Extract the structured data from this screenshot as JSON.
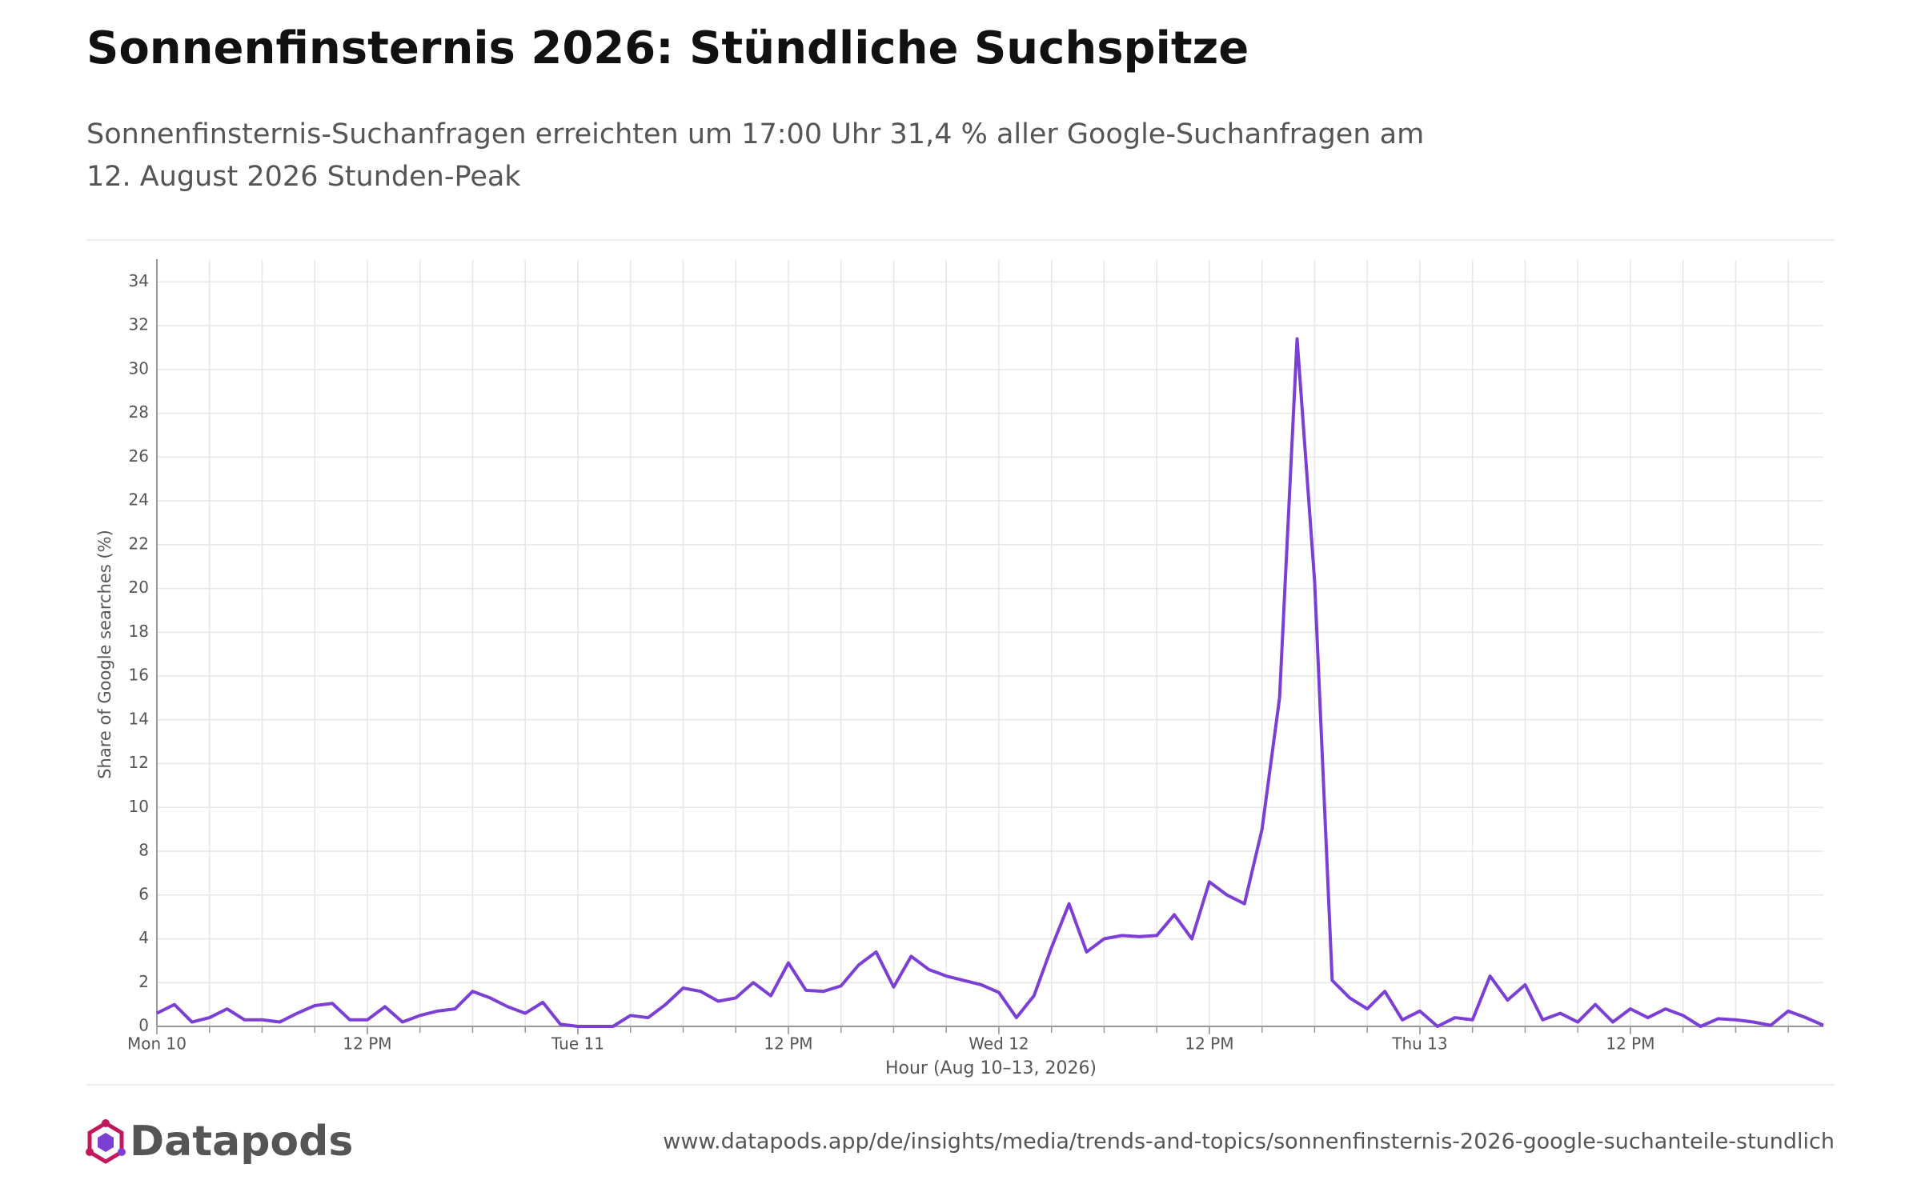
{
  "chart_data": {
    "type": "line",
    "title": "Sonnenfinsternis 2026: Stündliche Suchspitze",
    "subtitle": "Sonnenfinsternis-Suchanfragen erreichten um 17:00 Uhr 31,4 % aller Google-Suchanfragen am 12. August 2026 Stunden-Peak",
    "xlabel": "Hour (Aug 10–13, 2026)",
    "ylabel": "Share of Google searches (%)",
    "color": "#7b3fd6",
    "values": [
      0.6,
      1.0,
      0.2,
      0.4,
      0.8,
      0.3,
      0.3,
      0.2,
      0.6,
      0.95,
      1.05,
      0.3,
      0.3,
      0.9,
      0.2,
      0.5,
      0.7,
      0.8,
      1.6,
      1.3,
      0.9,
      0.6,
      1.1,
      0.1,
      0.0,
      0.0,
      0.0,
      0.5,
      0.4,
      1.0,
      1.75,
      1.6,
      1.15,
      1.3,
      2.0,
      1.4,
      2.9,
      1.65,
      1.6,
      1.85,
      2.8,
      3.4,
      1.8,
      3.2,
      2.6,
      2.3,
      2.1,
      1.9,
      1.55,
      0.4,
      1.4,
      3.6,
      5.6,
      3.4,
      4.0,
      4.15,
      4.1,
      4.15,
      5.1,
      4.0,
      6.6,
      6.0,
      5.6,
      9.0,
      15.0,
      31.4,
      20.3,
      2.1,
      1.3,
      0.8,
      1.6,
      0.3,
      0.7,
      0.0,
      0.4,
      0.3,
      2.3,
      1.2,
      1.9,
      0.3,
      0.6,
      0.2,
      1.0,
      0.2,
      0.8,
      0.4,
      0.8,
      0.5,
      0.0,
      0.35,
      0.3,
      0.2,
      0.05,
      0.7,
      0.4,
      0.05
    ],
    "xlim": [
      0,
      95
    ],
    "xticks": [
      {
        "value": 0,
        "label": "Mon 10"
      },
      {
        "value": 12,
        "label": "12 PM"
      },
      {
        "value": 24,
        "label": "Tue 11"
      },
      {
        "value": 36,
        "label": "12 PM"
      },
      {
        "value": 48,
        "label": "Wed 12"
      },
      {
        "value": 60,
        "label": "12 PM"
      },
      {
        "value": 72,
        "label": "Thu 13"
      },
      {
        "value": 84,
        "label": "12 PM"
      }
    ],
    "x_minor_ticks": [
      0,
      3,
      6,
      9,
      12,
      15,
      18,
      21,
      24,
      27,
      30,
      33,
      36,
      39,
      42,
      45,
      48,
      51,
      54,
      57,
      60,
      63,
      66,
      69,
      72,
      75,
      78,
      81,
      84,
      87,
      90,
      93
    ],
    "ylim": [
      0,
      35
    ],
    "yticks": [
      0,
      2,
      4,
      6,
      8,
      10,
      12,
      14,
      16,
      18,
      20,
      22,
      24,
      26,
      28,
      30,
      32,
      34
    ],
    "grid": true
  },
  "footer": {
    "brand": "Datapods",
    "url": "www.datapods.app/de/insights/media/trends-and-topics/sonnenfinsternis-2026-google-suchanteile-stundlich"
  }
}
